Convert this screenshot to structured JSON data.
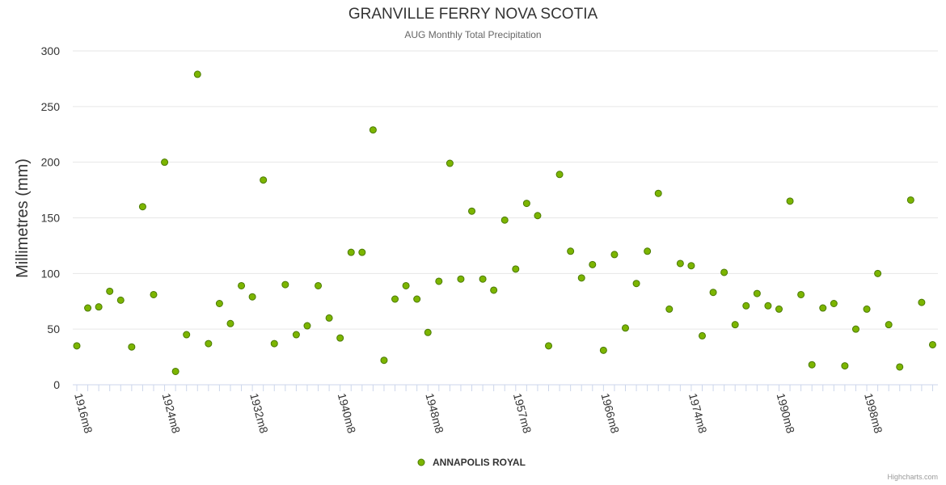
{
  "title": "GRANVILLE FERRY NOVA SCOTIA",
  "subtitle": "AUG Monthly Total Precipitation",
  "credits": "Highcharts.com",
  "colors": {
    "point_fill": "#7cb500",
    "point_stroke": "#4a7a00",
    "grid": "#e6e6e6",
    "axis": "#ccd6eb"
  },
  "chart_data": {
    "type": "scatter",
    "title": "GRANVILLE FERRY NOVA SCOTIA",
    "subtitle": "AUG Monthly Total Precipitation",
    "xlabel": "",
    "ylabel": "Millimetres (mm)",
    "ylim": [
      0,
      300
    ],
    "yticks": [
      0,
      50,
      100,
      150,
      200,
      250,
      300
    ],
    "x_count": 79,
    "x_tick_labels": [
      {
        "index": 0,
        "label": "1916m8"
      },
      {
        "index": 8,
        "label": "1924m8"
      },
      {
        "index": 16,
        "label": "1932m8"
      },
      {
        "index": 24,
        "label": "1940m8"
      },
      {
        "index": 32,
        "label": "1948m8"
      },
      {
        "index": 40,
        "label": "1957m8"
      },
      {
        "index": 48,
        "label": "1966m8"
      },
      {
        "index": 56,
        "label": "1974m8"
      },
      {
        "index": 64,
        "label": "1990m8"
      },
      {
        "index": 72,
        "label": "1998m8"
      }
    ],
    "series": [
      {
        "name": "ANNAPOLIS ROYAL",
        "values": [
          35,
          69,
          70,
          84,
          76,
          34,
          160,
          81,
          200,
          12,
          45,
          279,
          37,
          73,
          55,
          89,
          79,
          184,
          37,
          90,
          45,
          53,
          89,
          60,
          42,
          119,
          119,
          229,
          22,
          77,
          89,
          77,
          47,
          93,
          199,
          95,
          156,
          95,
          85,
          148,
          104,
          163,
          152,
          35,
          189,
          120,
          96,
          108,
          31,
          117,
          51,
          91,
          120,
          172,
          68,
          109,
          107,
          44,
          83,
          101,
          54,
          71,
          82,
          71,
          68,
          165,
          81,
          18,
          69,
          73,
          17,
          50,
          68,
          100,
          54,
          16,
          166,
          74,
          36
        ]
      }
    ],
    "legend": "bottom-center"
  }
}
